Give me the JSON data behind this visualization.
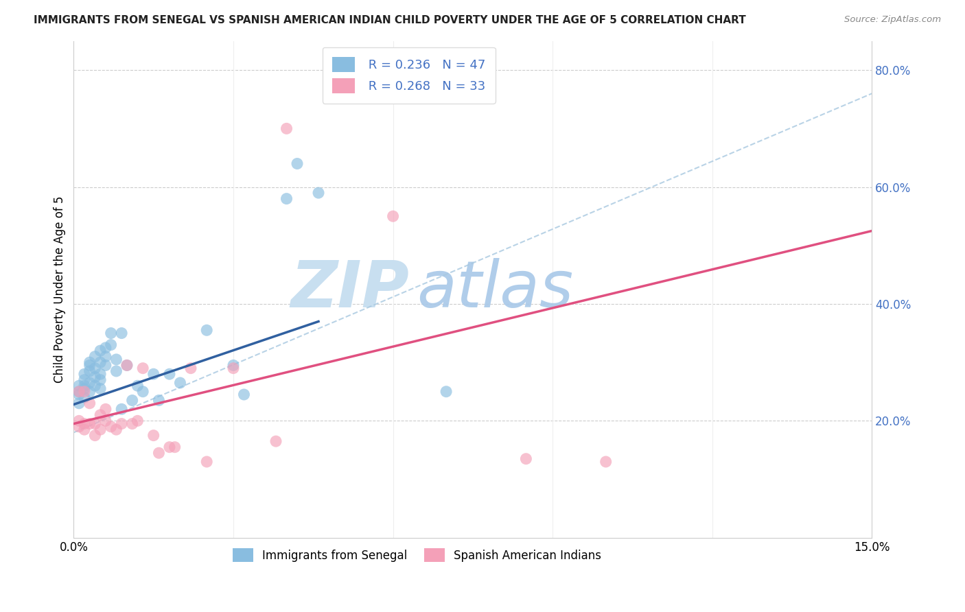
{
  "title": "IMMIGRANTS FROM SENEGAL VS SPANISH AMERICAN INDIAN CHILD POVERTY UNDER THE AGE OF 5 CORRELATION CHART",
  "source": "Source: ZipAtlas.com",
  "ylabel": "Child Poverty Under the Age of 5",
  "xlim": [
    0.0,
    0.15
  ],
  "ylim": [
    0.0,
    0.85
  ],
  "xticks": [
    0.0,
    0.03,
    0.06,
    0.09,
    0.12,
    0.15
  ],
  "yticks_right": [
    0.0,
    0.2,
    0.4,
    0.6,
    0.8
  ],
  "ytick_right_labels": [
    "",
    "20.0%",
    "40.0%",
    "60.0%",
    "80.0%"
  ],
  "R_blue": "0.236",
  "N_blue": "47",
  "R_pink": "0.268",
  "N_pink": "33",
  "blue_color": "#89BDE0",
  "pink_color": "#F4A0B8",
  "legend_label_blue": "Immigrants from Senegal",
  "legend_label_pink": "Spanish American Indians",
  "axis_color": "#4472C4",
  "blue_scatter_x": [
    0.001,
    0.001,
    0.001,
    0.001,
    0.002,
    0.002,
    0.002,
    0.002,
    0.002,
    0.003,
    0.003,
    0.003,
    0.003,
    0.003,
    0.004,
    0.004,
    0.004,
    0.004,
    0.005,
    0.005,
    0.005,
    0.005,
    0.005,
    0.006,
    0.006,
    0.006,
    0.007,
    0.007,
    0.008,
    0.008,
    0.009,
    0.01,
    0.011,
    0.012,
    0.013,
    0.015,
    0.016,
    0.018,
    0.02,
    0.025,
    0.03,
    0.032,
    0.04,
    0.042,
    0.046,
    0.07,
    0.009
  ],
  "blue_scatter_y": [
    0.245,
    0.25,
    0.26,
    0.23,
    0.27,
    0.255,
    0.28,
    0.24,
    0.26,
    0.285,
    0.295,
    0.265,
    0.25,
    0.3,
    0.31,
    0.275,
    0.29,
    0.26,
    0.3,
    0.32,
    0.27,
    0.28,
    0.255,
    0.31,
    0.325,
    0.295,
    0.33,
    0.35,
    0.285,
    0.305,
    0.35,
    0.295,
    0.235,
    0.26,
    0.25,
    0.28,
    0.235,
    0.28,
    0.265,
    0.355,
    0.295,
    0.245,
    0.58,
    0.64,
    0.59,
    0.25,
    0.22
  ],
  "pink_scatter_x": [
    0.001,
    0.001,
    0.001,
    0.002,
    0.002,
    0.002,
    0.003,
    0.003,
    0.004,
    0.004,
    0.005,
    0.005,
    0.006,
    0.006,
    0.007,
    0.008,
    0.009,
    0.01,
    0.011,
    0.012,
    0.013,
    0.015,
    0.016,
    0.018,
    0.019,
    0.022,
    0.025,
    0.03,
    0.038,
    0.06,
    0.085,
    0.1,
    0.04
  ],
  "pink_scatter_y": [
    0.25,
    0.2,
    0.19,
    0.25,
    0.195,
    0.185,
    0.23,
    0.195,
    0.195,
    0.175,
    0.21,
    0.185,
    0.22,
    0.2,
    0.19,
    0.185,
    0.195,
    0.295,
    0.195,
    0.2,
    0.29,
    0.175,
    0.145,
    0.155,
    0.155,
    0.29,
    0.13,
    0.29,
    0.165,
    0.55,
    0.135,
    0.13,
    0.7
  ],
  "blue_line_x": [
    0.0,
    0.046
  ],
  "blue_line_y": [
    0.228,
    0.37
  ],
  "blue_dash_line_x": [
    0.0,
    0.15
  ],
  "blue_dash_line_y": [
    0.18,
    0.76
  ],
  "pink_line_x": [
    0.0,
    0.15
  ],
  "pink_line_y": [
    0.195,
    0.525
  ],
  "watermark_zip": "ZIP",
  "watermark_atlas": "atlas",
  "watermark_color_zip": "#C8DFF0",
  "watermark_color_atlas": "#A8C8E8"
}
